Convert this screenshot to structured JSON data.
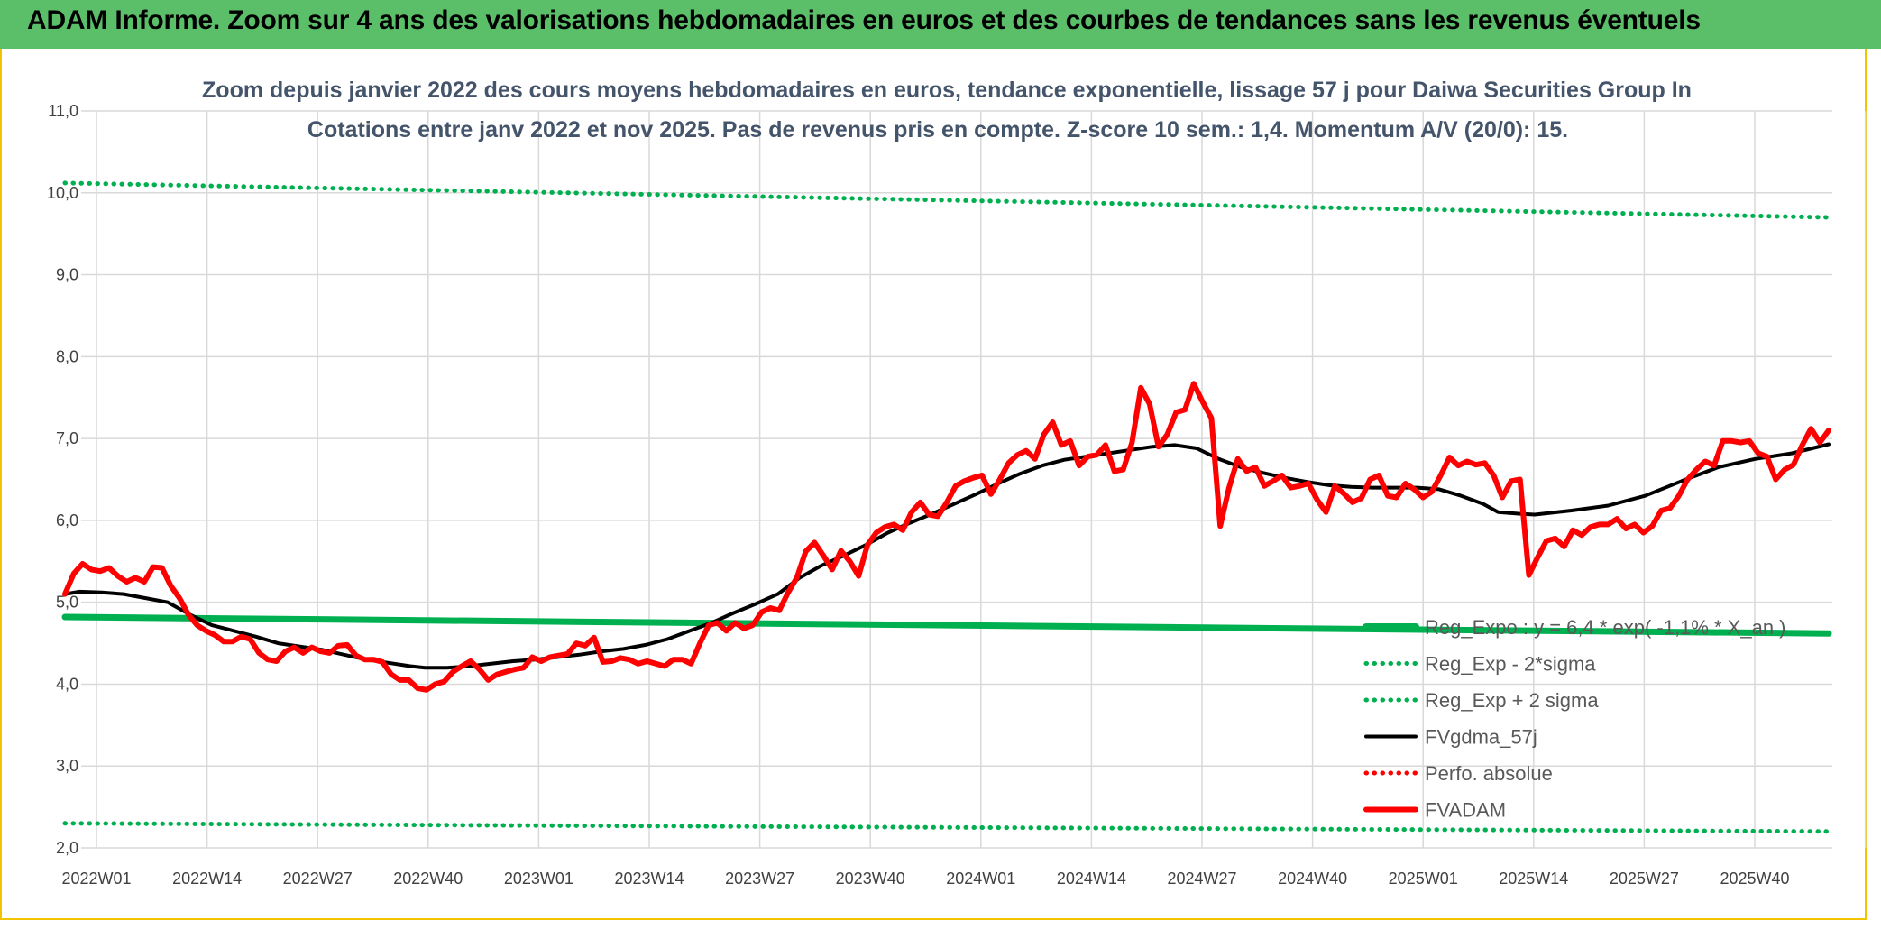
{
  "banner": {
    "title": "ADAM Informe. Zoom sur 4 ans des valorisations hebdomadaires en euros et des courbes de tendances sans les revenus éventuels"
  },
  "colors": {
    "banner": "#5bbf6a",
    "reg_expo": "#00b050",
    "price": "#ff0000",
    "ma": "#000000",
    "frame": "#f2c400"
  },
  "chart_data": {
    "type": "line",
    "title": "Zoom depuis janvier 2022 des cours moyens hebdomadaires en euros, tendance exponentielle, lissage 57 j pour Daiwa Securities Group In",
    "subtitle": "Cotations entre janv 2022 et nov 2025. Pas de revenus pris en compte. Z-score 10 sem.: 1,4. Momentum A/V (20/0): 15.",
    "xlabel": "",
    "ylabel": "",
    "ylim": [
      2.0,
      11.0
    ],
    "yticks": [
      "2,0",
      "3,0",
      "4,0",
      "5,0",
      "6,0",
      "7,0",
      "8,0",
      "9,0",
      "10,0",
      "11,0"
    ],
    "xticks": [
      "2022W01",
      "2022W14",
      "2022W27",
      "2022W40",
      "2023W01",
      "2023W14",
      "2023W27",
      "2023W40",
      "2024W01",
      "2024W14",
      "2024W27",
      "2024W40",
      "2025W01",
      "2025W14",
      "2025W27",
      "2025W40"
    ],
    "x_range_weeks": [
      0,
      205
    ],
    "grid": true,
    "legend_position": "right",
    "series": [
      {
        "name": "Reg_Expo : y = 6,4 * exp( -1,1% * X_an )",
        "style": "solid-thick",
        "color": "#00b050",
        "points": [
          [
            0,
            4.82
          ],
          [
            205,
            4.62
          ]
        ]
      },
      {
        "name": "Reg_Exp - 2*sigma",
        "style": "dotted",
        "color": "#00b050",
        "points": [
          [
            0,
            2.3
          ],
          [
            205,
            2.2
          ]
        ]
      },
      {
        "name": "Reg_Exp + 2 sigma",
        "style": "dotted",
        "color": "#00b050",
        "points": [
          [
            0,
            10.12
          ],
          [
            205,
            9.7
          ]
        ]
      },
      {
        "name": "FVgdma_57j",
        "style": "solid",
        "color": "#000000",
        "points": [
          [
            0,
            5.1
          ],
          [
            2,
            5.13
          ],
          [
            5,
            5.12
          ],
          [
            8,
            5.1
          ],
          [
            11,
            5.05
          ],
          [
            14,
            5.0
          ],
          [
            17,
            4.85
          ],
          [
            20,
            4.72
          ],
          [
            23,
            4.65
          ],
          [
            26,
            4.58
          ],
          [
            29,
            4.5
          ],
          [
            32,
            4.46
          ],
          [
            35,
            4.42
          ],
          [
            38,
            4.36
          ],
          [
            41,
            4.3
          ],
          [
            44,
            4.26
          ],
          [
            47,
            4.22
          ],
          [
            49,
            4.2
          ],
          [
            52,
            4.2
          ],
          [
            55,
            4.22
          ],
          [
            58,
            4.25
          ],
          [
            61,
            4.28
          ],
          [
            64,
            4.3
          ],
          [
            67,
            4.33
          ],
          [
            70,
            4.36
          ],
          [
            73,
            4.4
          ],
          [
            76,
            4.43
          ],
          [
            79,
            4.48
          ],
          [
            82,
            4.55
          ],
          [
            85,
            4.65
          ],
          [
            88,
            4.75
          ],
          [
            91,
            4.87
          ],
          [
            94,
            4.98
          ],
          [
            97,
            5.1
          ],
          [
            100,
            5.3
          ],
          [
            103,
            5.45
          ],
          [
            106,
            5.57
          ],
          [
            109,
            5.7
          ],
          [
            112,
            5.85
          ],
          [
            115,
            5.97
          ],
          [
            118,
            6.08
          ],
          [
            121,
            6.2
          ],
          [
            124,
            6.32
          ],
          [
            127,
            6.45
          ],
          [
            130,
            6.57
          ],
          [
            133,
            6.67
          ],
          [
            136,
            6.74
          ],
          [
            139,
            6.78
          ],
          [
            142,
            6.82
          ],
          [
            145,
            6.86
          ],
          [
            148,
            6.9
          ],
          [
            151,
            6.92
          ],
          [
            154,
            6.88
          ],
          [
            157,
            6.75
          ],
          [
            160,
            6.65
          ],
          [
            163,
            6.58
          ],
          [
            166,
            6.52
          ],
          [
            169,
            6.47
          ],
          [
            172,
            6.43
          ],
          [
            175,
            6.41
          ],
          [
            178,
            6.4
          ],
          [
            181,
            6.4
          ],
          [
            184,
            6.4
          ],
          [
            187,
            6.38
          ],
          [
            190,
            6.3
          ],
          [
            193,
            6.2
          ],
          [
            195,
            6.1
          ],
          [
            198,
            6.08
          ],
          [
            200,
            6.07
          ],
          [
            205,
            6.12
          ],
          [
            210,
            6.18
          ],
          [
            215,
            6.3
          ],
          [
            220,
            6.48
          ],
          [
            225,
            6.65
          ],
          [
            230,
            6.75
          ],
          [
            235,
            6.82
          ],
          [
            240,
            6.93
          ]
        ]
      },
      {
        "name": "Perfo. absolue",
        "style": "dotted",
        "color": "#ff0000",
        "points": []
      },
      {
        "name": "FVADAM",
        "style": "solid-thick",
        "color": "#ff0000",
        "points": [
          [
            0,
            5.1
          ],
          [
            2,
            5.35
          ],
          [
            4,
            5.47
          ],
          [
            6,
            5.4
          ],
          [
            8,
            5.38
          ],
          [
            10,
            5.42
          ],
          [
            12,
            5.32
          ],
          [
            14,
            5.25
          ],
          [
            16,
            5.3
          ],
          [
            18,
            5.25
          ],
          [
            20,
            5.43
          ],
          [
            22,
            5.42
          ],
          [
            24,
            5.2
          ],
          [
            26,
            5.05
          ],
          [
            28,
            4.85
          ],
          [
            30,
            4.72
          ],
          [
            32,
            4.65
          ],
          [
            34,
            4.6
          ],
          [
            36,
            4.52
          ],
          [
            38,
            4.52
          ],
          [
            40,
            4.58
          ],
          [
            42,
            4.55
          ],
          [
            44,
            4.38
          ],
          [
            46,
            4.3
          ],
          [
            48,
            4.28
          ],
          [
            50,
            4.4
          ],
          [
            52,
            4.45
          ],
          [
            54,
            4.38
          ],
          [
            56,
            4.45
          ],
          [
            58,
            4.4
          ],
          [
            60,
            4.38
          ],
          [
            62,
            4.47
          ],
          [
            64,
            4.48
          ],
          [
            66,
            4.35
          ],
          [
            68,
            4.3
          ],
          [
            70,
            4.3
          ],
          [
            72,
            4.27
          ],
          [
            74,
            4.12
          ],
          [
            76,
            4.05
          ],
          [
            78,
            4.05
          ],
          [
            80,
            3.95
          ],
          [
            82,
            3.93
          ],
          [
            84,
            4.0
          ],
          [
            86,
            4.03
          ],
          [
            88,
            4.15
          ],
          [
            90,
            4.22
          ],
          [
            92,
            4.28
          ],
          [
            94,
            4.18
          ],
          [
            96,
            4.05
          ],
          [
            98,
            4.12
          ],
          [
            100,
            4.15
          ],
          [
            102,
            4.18
          ],
          [
            104,
            4.2
          ],
          [
            106,
            4.33
          ],
          [
            108,
            4.28
          ],
          [
            110,
            4.33
          ],
          [
            112,
            4.35
          ],
          [
            114,
            4.37
          ],
          [
            116,
            4.5
          ],
          [
            118,
            4.47
          ],
          [
            120,
            4.57
          ],
          [
            122,
            4.27
          ],
          [
            124,
            4.28
          ],
          [
            126,
            4.32
          ],
          [
            128,
            4.3
          ],
          [
            130,
            4.25
          ],
          [
            132,
            4.28
          ],
          [
            134,
            4.25
          ],
          [
            136,
            4.22
          ],
          [
            138,
            4.3
          ],
          [
            140,
            4.3
          ],
          [
            142,
            4.25
          ],
          [
            144,
            4.5
          ],
          [
            146,
            4.72
          ],
          [
            148,
            4.75
          ],
          [
            150,
            4.65
          ],
          [
            152,
            4.75
          ],
          [
            154,
            4.68
          ],
          [
            156,
            4.72
          ],
          [
            158,
            4.88
          ],
          [
            160,
            4.93
          ],
          [
            162,
            4.9
          ],
          [
            164,
            5.12
          ],
          [
            166,
            5.3
          ],
          [
            168,
            5.62
          ],
          [
            170,
            5.73
          ],
          [
            172,
            5.57
          ],
          [
            174,
            5.4
          ],
          [
            176,
            5.63
          ],
          [
            178,
            5.5
          ],
          [
            180,
            5.32
          ],
          [
            182,
            5.7
          ],
          [
            184,
            5.85
          ],
          [
            186,
            5.92
          ],
          [
            188,
            5.95
          ],
          [
            190,
            5.88
          ],
          [
            192,
            6.1
          ],
          [
            194,
            6.22
          ],
          [
            196,
            6.07
          ],
          [
            198,
            6.05
          ],
          [
            200,
            6.22
          ],
          [
            202,
            6.42
          ],
          [
            204,
            6.48
          ],
          [
            206,
            6.52
          ],
          [
            208,
            6.55
          ],
          [
            210,
            6.32
          ],
          [
            212,
            6.5
          ],
          [
            214,
            6.7
          ],
          [
            216,
            6.8
          ],
          [
            218,
            6.85
          ],
          [
            220,
            6.75
          ],
          [
            222,
            7.05
          ],
          [
            224,
            7.2
          ],
          [
            226,
            6.92
          ],
          [
            228,
            6.97
          ],
          [
            230,
            6.67
          ],
          [
            232,
            6.78
          ],
          [
            234,
            6.8
          ],
          [
            236,
            6.92
          ],
          [
            238,
            6.6
          ],
          [
            240,
            6.62
          ],
          [
            242,
            6.95
          ],
          [
            244,
            7.62
          ],
          [
            246,
            7.42
          ],
          [
            248,
            6.9
          ],
          [
            250,
            7.05
          ],
          [
            252,
            7.32
          ],
          [
            254,
            7.35
          ],
          [
            256,
            7.67
          ],
          [
            258,
            7.45
          ],
          [
            260,
            7.25
          ],
          [
            262,
            5.93
          ],
          [
            264,
            6.4
          ],
          [
            266,
            6.75
          ],
          [
            268,
            6.6
          ],
          [
            270,
            6.65
          ],
          [
            272,
            6.42
          ],
          [
            274,
            6.48
          ],
          [
            276,
            6.55
          ],
          [
            278,
            6.4
          ],
          [
            280,
            6.42
          ],
          [
            282,
            6.45
          ],
          [
            284,
            6.25
          ],
          [
            286,
            6.1
          ],
          [
            288,
            6.42
          ],
          [
            290,
            6.33
          ],
          [
            292,
            6.22
          ],
          [
            294,
            6.27
          ],
          [
            296,
            6.5
          ],
          [
            298,
            6.55
          ],
          [
            300,
            6.3
          ],
          [
            302,
            6.28
          ],
          [
            304,
            6.45
          ],
          [
            306,
            6.38
          ],
          [
            308,
            6.28
          ],
          [
            310,
            6.35
          ],
          [
            312,
            6.55
          ],
          [
            314,
            6.77
          ],
          [
            316,
            6.67
          ],
          [
            318,
            6.72
          ],
          [
            320,
            6.68
          ],
          [
            322,
            6.7
          ],
          [
            324,
            6.55
          ],
          [
            326,
            6.28
          ],
          [
            328,
            6.48
          ],
          [
            330,
            6.5
          ],
          [
            332,
            5.33
          ],
          [
            334,
            5.55
          ],
          [
            336,
            5.75
          ],
          [
            338,
            5.78
          ],
          [
            340,
            5.68
          ],
          [
            342,
            5.88
          ],
          [
            344,
            5.82
          ],
          [
            346,
            5.92
          ],
          [
            348,
            5.95
          ],
          [
            350,
            5.95
          ],
          [
            352,
            6.02
          ],
          [
            354,
            5.9
          ],
          [
            356,
            5.95
          ],
          [
            358,
            5.85
          ],
          [
            360,
            5.93
          ],
          [
            362,
            6.12
          ],
          [
            364,
            6.15
          ],
          [
            366,
            6.3
          ],
          [
            368,
            6.5
          ],
          [
            370,
            6.62
          ],
          [
            372,
            6.72
          ],
          [
            374,
            6.67
          ],
          [
            376,
            6.97
          ],
          [
            378,
            6.97
          ],
          [
            380,
            6.95
          ],
          [
            382,
            6.97
          ],
          [
            384,
            6.82
          ],
          [
            386,
            6.78
          ],
          [
            388,
            6.5
          ],
          [
            390,
            6.62
          ],
          [
            392,
            6.68
          ],
          [
            394,
            6.92
          ],
          [
            396,
            7.12
          ],
          [
            398,
            6.95
          ],
          [
            400,
            7.1
          ]
        ]
      }
    ]
  }
}
